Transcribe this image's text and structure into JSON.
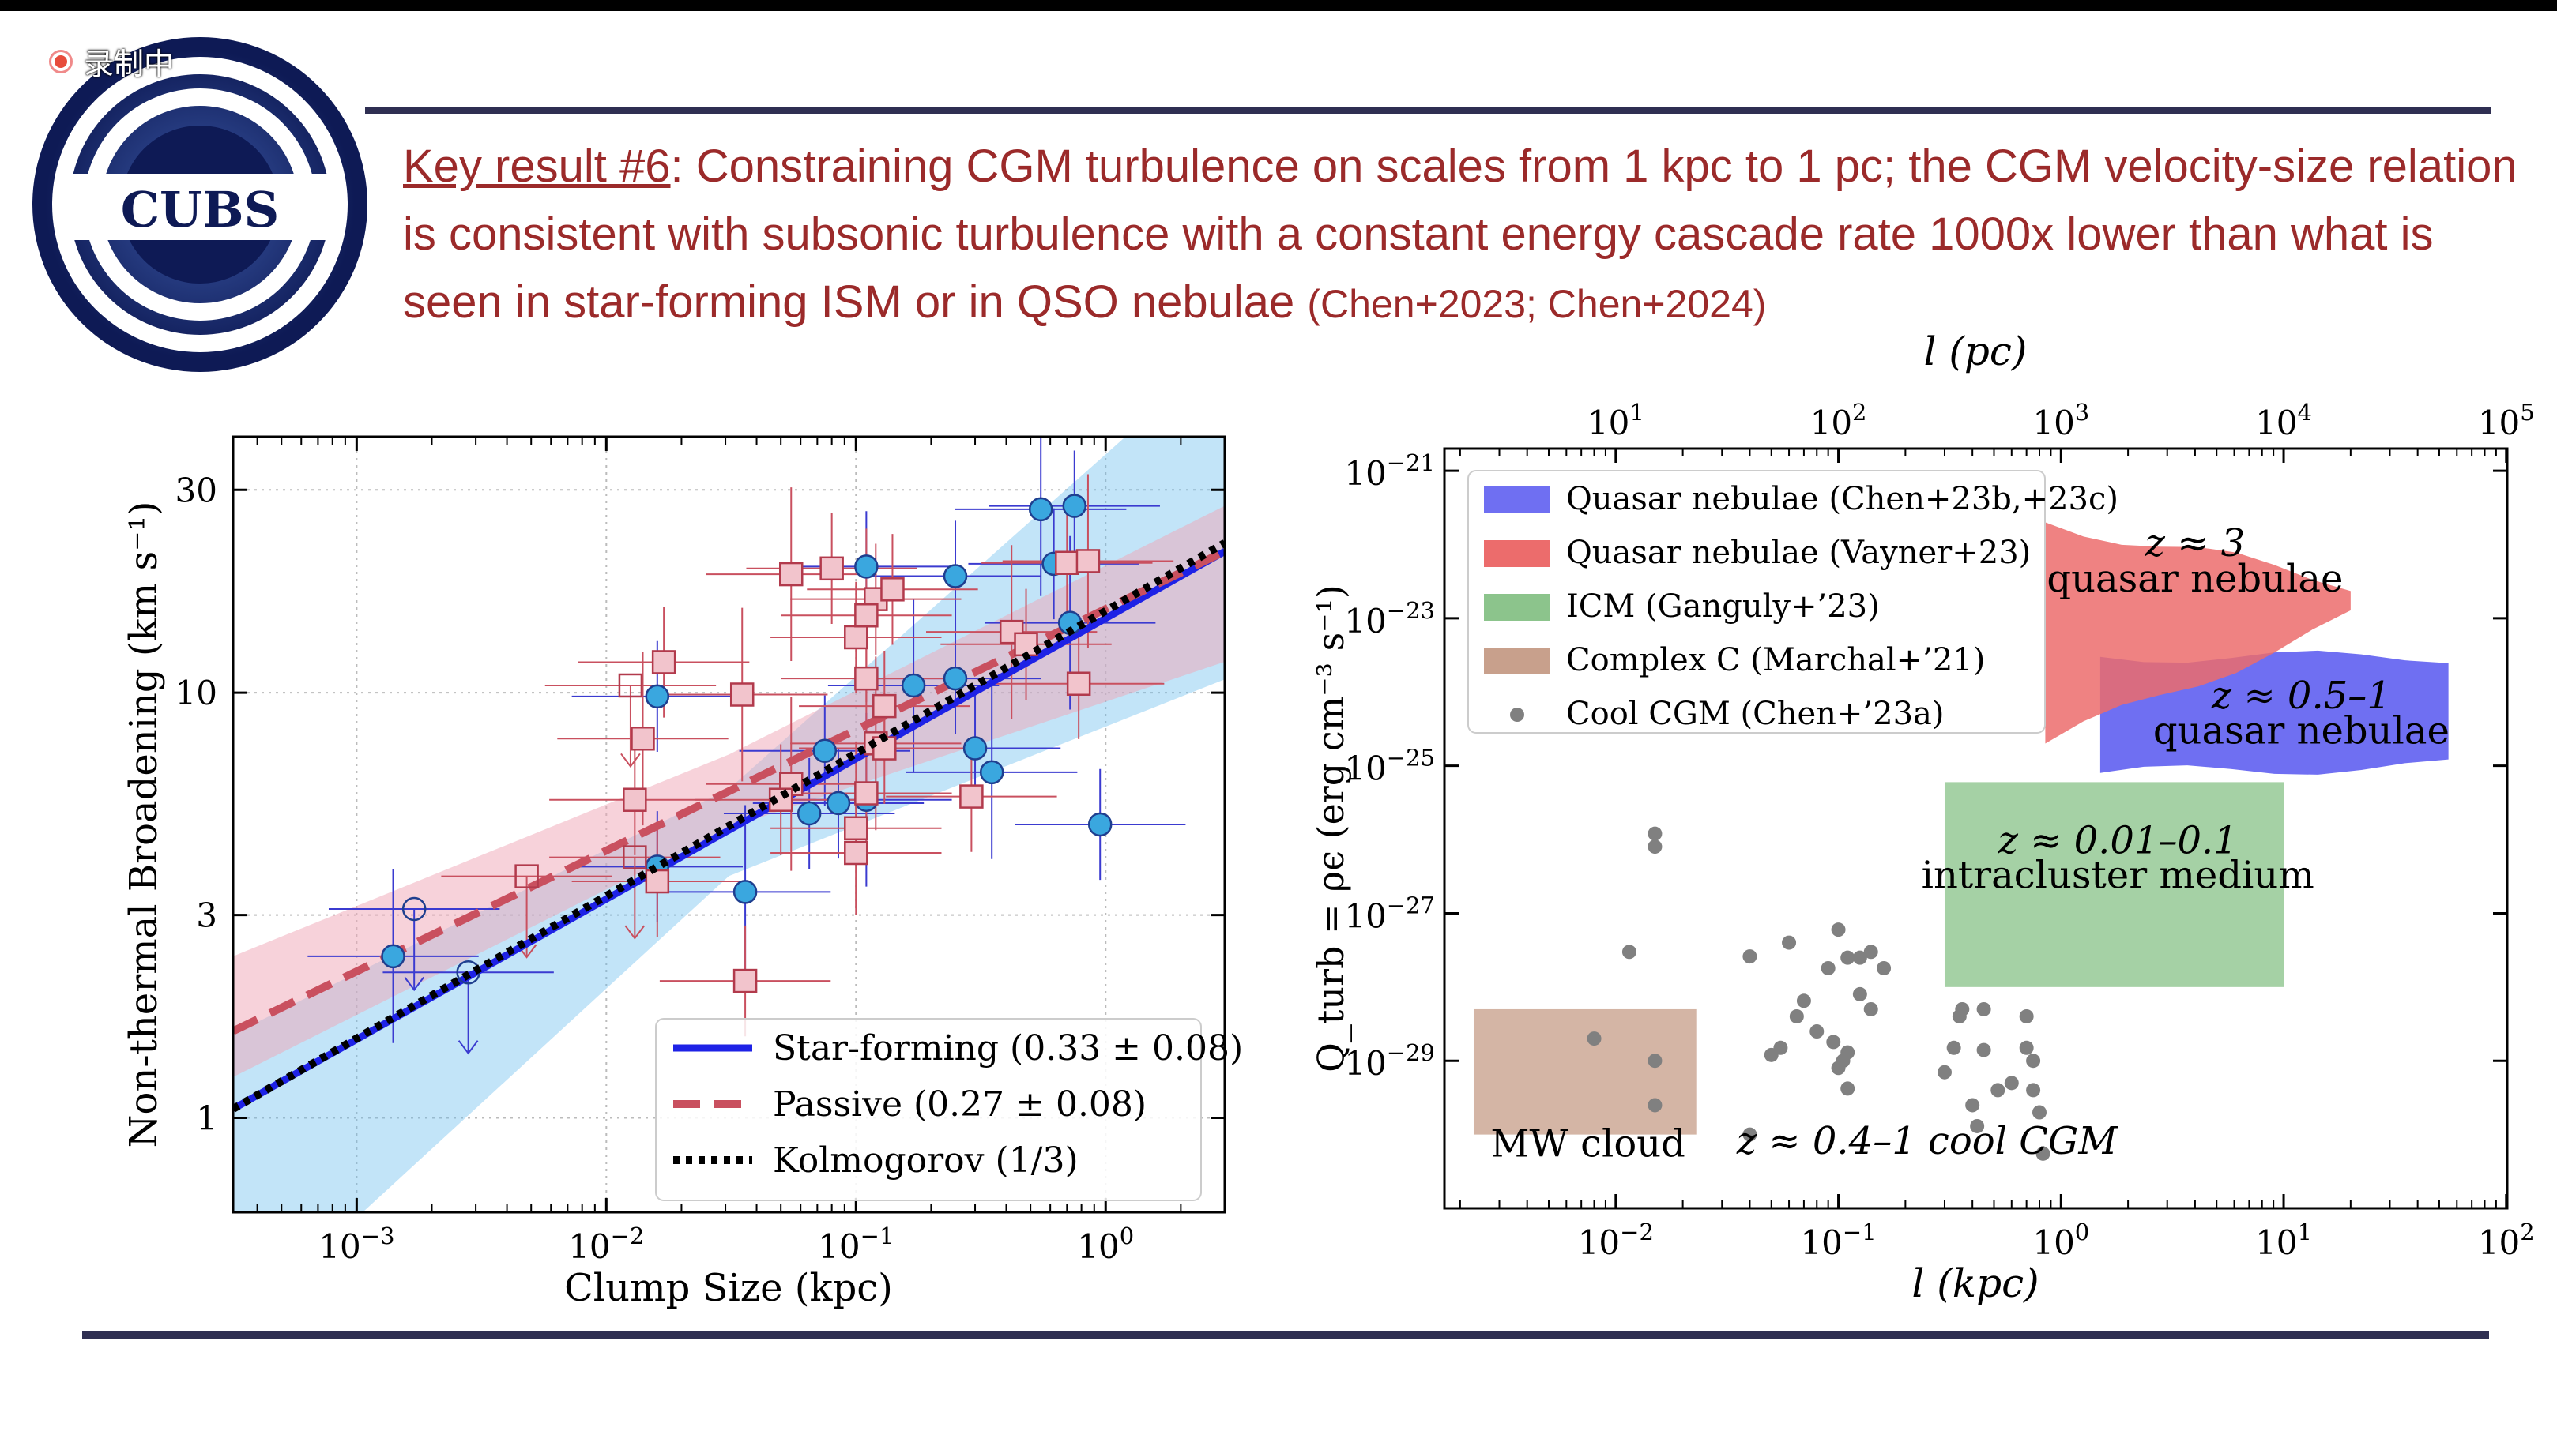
{
  "recording": {
    "label": "录制中"
  },
  "logo": {
    "text": "CUBS"
  },
  "headline": {
    "key": "Key result #6",
    "body": ": Constraining CGM turbulence on scales from 1 kpc to 1 pc; the CGM velocity-size relation is consistent with subsonic turbulence with a constant energy cascade rate 1000x lower than what is seen in star-forming ISM or in QSO nebulae ",
    "citation": "(Chen+2023; Chen+2024)"
  },
  "colors": {
    "star_forming": "#1e22e6",
    "passive": "#c9505f",
    "point_blue": "#3aa7df",
    "point_pink": "#f2c4cc",
    "qso_blue": "#6f6ff2",
    "qso_red": "#ec6c6c",
    "icm": "#8cc48c",
    "complexc": "#c8a08c",
    "cool": "#808080"
  },
  "chart_data": [
    {
      "type": "scatter",
      "title": "",
      "xlabel": "Clump Size (kpc)",
      "ylabel": "Non-thermal Broadening (km s⁻¹)",
      "xscale": "log",
      "yscale": "log",
      "xlim": [
        0.00032,
        3.0
      ],
      "ylim": [
        0.6,
        40
      ],
      "xticks": [
        {
          "v": 0.001,
          "b": "10",
          "e": "−3"
        },
        {
          "v": 0.01,
          "b": "10",
          "e": "−2"
        },
        {
          "v": 0.1,
          "b": "10",
          "e": "−1"
        },
        {
          "v": 1,
          "b": "10",
          "e": "0"
        }
      ],
      "yticks": [
        {
          "v": 1,
          "label": "1"
        },
        {
          "v": 3,
          "label": "3"
        },
        {
          "v": 10,
          "label": "10"
        },
        {
          "v": 30,
          "label": "30"
        }
      ],
      "legend": {
        "position": "bottom-right",
        "entries": [
          {
            "label": "Star-forming (0.33 ± 0.08)",
            "style": "solid-blue"
          },
          {
            "label": "Passive (0.27 ± 0.08)",
            "style": "dashed-red"
          },
          {
            "label": "Kolmogorov (1/3)",
            "style": "dotted-black"
          }
        ]
      },
      "series": [
        {
          "name": "Star-forming",
          "marker": "circle-blue",
          "points": [
            [
              0.0014,
              2.4
            ],
            [
              0.016,
              9.8
            ],
            [
              0.016,
              3.9
            ],
            [
              0.036,
              3.4
            ],
            [
              0.11,
              19.8
            ],
            [
              0.25,
              18.8
            ],
            [
              0.55,
              27
            ],
            [
              0.75,
              27.5
            ],
            [
              0.62,
              20.1
            ],
            [
              0.72,
              14.6
            ],
            [
              0.075,
              7.3
            ],
            [
              0.065,
              5.2
            ],
            [
              0.17,
              10.4
            ],
            [
              0.25,
              10.8
            ],
            [
              0.3,
              7.4
            ],
            [
              0.35,
              6.5
            ],
            [
              0.95,
              4.9
            ],
            [
              0.085,
              5.5
            ],
            [
              0.11,
              5.6
            ]
          ]
        },
        {
          "name": "Star-forming upper limits",
          "marker": "open-circle-blue",
          "points": [
            [
              0.0017,
              3.1
            ],
            [
              0.0028,
              2.2
            ]
          ]
        },
        {
          "name": "Passive",
          "marker": "square-pink",
          "points": [
            [
              0.055,
              19
            ],
            [
              0.08,
              19.6
            ],
            [
              0.7,
              20.2
            ],
            [
              0.85,
              20.4
            ],
            [
              0.12,
              16.6
            ],
            [
              0.1,
              13.5
            ],
            [
              0.11,
              15.2
            ],
            [
              0.14,
              17.5
            ],
            [
              0.017,
              11.8
            ],
            [
              0.035,
              9.9
            ],
            [
              0.11,
              10.8
            ],
            [
              0.13,
              9.3
            ],
            [
              0.42,
              13.9
            ],
            [
              0.48,
              13
            ],
            [
              0.78,
              10.5
            ],
            [
              0.014,
              7.8
            ],
            [
              0.013,
              5.6
            ],
            [
              0.016,
              3.6
            ],
            [
              0.055,
              6.1
            ],
            [
              0.05,
              5.6
            ],
            [
              0.11,
              5.8
            ],
            [
              0.1,
              4.8
            ],
            [
              0.1,
              4.2
            ],
            [
              0.29,
              5.7
            ],
            [
              0.12,
              7.6
            ],
            [
              0.13,
              7.4
            ],
            [
              0.036,
              2.1
            ]
          ]
        },
        {
          "name": "Passive upper limits",
          "marker": "open-square-pink",
          "points": [
            [
              0.0125,
              10.4
            ],
            [
              0.0048,
              3.7
            ],
            [
              0.013,
              4.1
            ]
          ]
        },
        {
          "name": "Star-forming fit",
          "line": [
            [
              0.00032,
              1.05
            ],
            [
              3.0,
              21.5
            ]
          ]
        },
        {
          "name": "Passive fit",
          "line": [
            [
              0.00032,
              1.6
            ],
            [
              3.0,
              21.5
            ]
          ]
        },
        {
          "name": "Kolmogorov",
          "line": [
            [
              0.00032,
              1.05
            ],
            [
              3.0,
              22.5
            ]
          ]
        }
      ]
    },
    {
      "type": "area",
      "title": "",
      "xlabel": "l (kpc)",
      "x2label": "l (pc)",
      "ylabel": "Q_turb = ρϵ (erg cm⁻³ s⁻¹)",
      "xscale": "log",
      "yscale": "log",
      "xlim": [
        0.0017,
        101
      ],
      "ylim": [
        1e-31,
        2e-21
      ],
      "xticks": [
        {
          "v": 0.01,
          "b": "10",
          "e": "−2"
        },
        {
          "v": 0.1,
          "b": "10",
          "e": "−1"
        },
        {
          "v": 1,
          "b": "10",
          "e": "0"
        },
        {
          "v": 10,
          "b": "10",
          "e": "1"
        },
        {
          "v": 100,
          "b": "10",
          "e": "2"
        }
      ],
      "x2ticks": [
        {
          "v": 0.01,
          "b": "10",
          "e": "1"
        },
        {
          "v": 0.1,
          "b": "10",
          "e": "2"
        },
        {
          "v": 1,
          "b": "10",
          "e": "3"
        },
        {
          "v": 10,
          "b": "10",
          "e": "4"
        },
        {
          "v": 100,
          "b": "10",
          "e": "5"
        }
      ],
      "yticks": [
        {
          "v": 1e-21,
          "b": "10",
          "e": "−21"
        },
        {
          "v": 1e-23,
          "b": "10",
          "e": "−23"
        },
        {
          "v": 1e-25,
          "b": "10",
          "e": "−25"
        },
        {
          "v": 1e-27,
          "b": "10",
          "e": "−27"
        },
        {
          "v": 1e-29,
          "b": "10",
          "e": "−29"
        }
      ],
      "legend": {
        "position": "top-left",
        "entries": [
          {
            "label": "Quasar nebulae (Chen+23b,+23c)",
            "style": "qso_blue"
          },
          {
            "label": "Quasar nebulae (Vayner+23)",
            "style": "qso_red"
          },
          {
            "label": "ICM (Ganguly+’23)",
            "style": "icm"
          },
          {
            "label": "Complex C (Marchal+’21)",
            "style": "complexc"
          },
          {
            "label": "Cool CGM (Chen+’23a)",
            "style": "cool"
          }
        ]
      },
      "regions": [
        {
          "name": "QSO nebulae z~3",
          "label": [
            "z ≈ 3",
            "quasar nebulae"
          ],
          "x": [
            0.85,
            20
          ],
          "y_low": [
            2e-25,
            1e-23
          ],
          "y_high": [
            2e-22,
            3e-23
          ]
        },
        {
          "name": "QSO nebulae z~0.5-1",
          "label": [
            "z ≈ 0.5–1",
            "quasar nebulae"
          ],
          "x": [
            1.5,
            55
          ],
          "y_low": [
            8e-26,
            1e-25
          ],
          "y_high": [
            3e-24,
            3e-24
          ]
        },
        {
          "name": "ICM",
          "label": [
            "z ≈ 0.01–0.1",
            "intracluster medium"
          ],
          "x": [
            0.3,
            10
          ],
          "y": [
            1e-28,
            6e-26
          ]
        },
        {
          "name": "Complex C",
          "label": [
            "MW cloud"
          ],
          "x": [
            0.0023,
            0.023
          ],
          "y": [
            1e-30,
            5e-29
          ]
        }
      ],
      "annotations": [
        "z ≈ 0.4–1 cool CGM"
      ],
      "points": [
        [
          0.015,
          1.2e-26
        ],
        [
          0.015,
          8e-27
        ],
        [
          0.0115,
          3e-28
        ],
        [
          0.008,
          2e-29
        ],
        [
          0.015,
          1e-29
        ],
        [
          0.015,
          2.5e-30
        ],
        [
          0.04,
          2.6e-28
        ],
        [
          0.06,
          4e-28
        ],
        [
          0.09,
          1.8e-28
        ],
        [
          0.1,
          6e-28
        ],
        [
          0.11,
          2.5e-28
        ],
        [
          0.125,
          2.5e-28
        ],
        [
          0.14,
          3e-28
        ],
        [
          0.16,
          1.8e-28
        ],
        [
          0.05,
          1.2e-29
        ],
        [
          0.055,
          1.5e-29
        ],
        [
          0.065,
          4e-29
        ],
        [
          0.08,
          2.5e-29
        ],
        [
          0.095,
          1.8e-29
        ],
        [
          0.105,
          1e-29
        ],
        [
          0.11,
          4.2e-30
        ],
        [
          0.11,
          1.3e-29
        ],
        [
          0.125,
          8e-29
        ],
        [
          0.14,
          5e-29
        ],
        [
          0.1,
          8e-30
        ],
        [
          0.33,
          1.5e-29
        ],
        [
          0.36,
          5e-29
        ],
        [
          0.35,
          4e-29
        ],
        [
          0.3,
          7e-30
        ],
        [
          0.42,
          1.3e-30
        ],
        [
          0.45,
          5e-29
        ],
        [
          0.52,
          4e-30
        ],
        [
          0.6,
          5e-30
        ],
        [
          0.7,
          1.5e-29
        ],
        [
          0.75,
          1e-29
        ],
        [
          0.7,
          4e-29
        ],
        [
          0.75,
          4e-30
        ],
        [
          0.8,
          2e-30
        ],
        [
          0.83,
          5.5e-31
        ],
        [
          0.07,
          6.5e-29
        ],
        [
          0.04,
          1e-30
        ],
        [
          0.4,
          2.5e-30
        ],
        [
          0.45,
          1.4e-29
        ]
      ]
    }
  ]
}
